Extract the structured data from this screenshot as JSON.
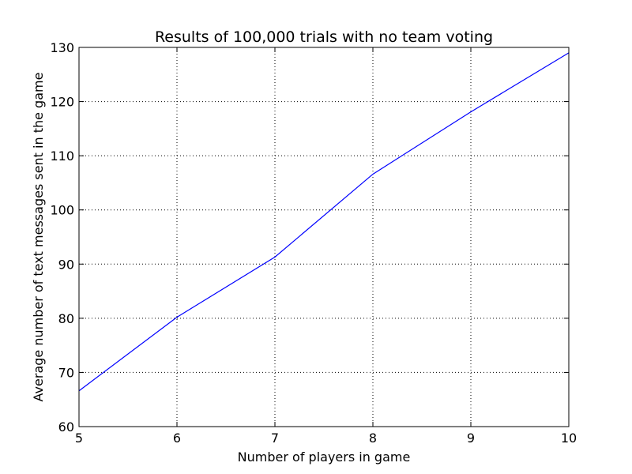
{
  "chart_data": {
    "type": "line",
    "title": "Results of 100,000 trials with no team voting",
    "xlabel": "Number of players in game",
    "ylabel": "Average number of text messages sent in the game",
    "xlim": [
      5,
      10
    ],
    "ylim": [
      60,
      130
    ],
    "xticks": [
      5,
      6,
      7,
      8,
      9,
      10
    ],
    "yticks": [
      60,
      70,
      80,
      90,
      100,
      110,
      120,
      130
    ],
    "grid": true,
    "line_color": "#0000ff",
    "series": [
      {
        "x": [
          5,
          6,
          7,
          8,
          9,
          10
        ],
        "values": [
          66.6,
          80.2,
          91.3,
          106.6,
          118.1,
          129.0
        ]
      }
    ]
  }
}
